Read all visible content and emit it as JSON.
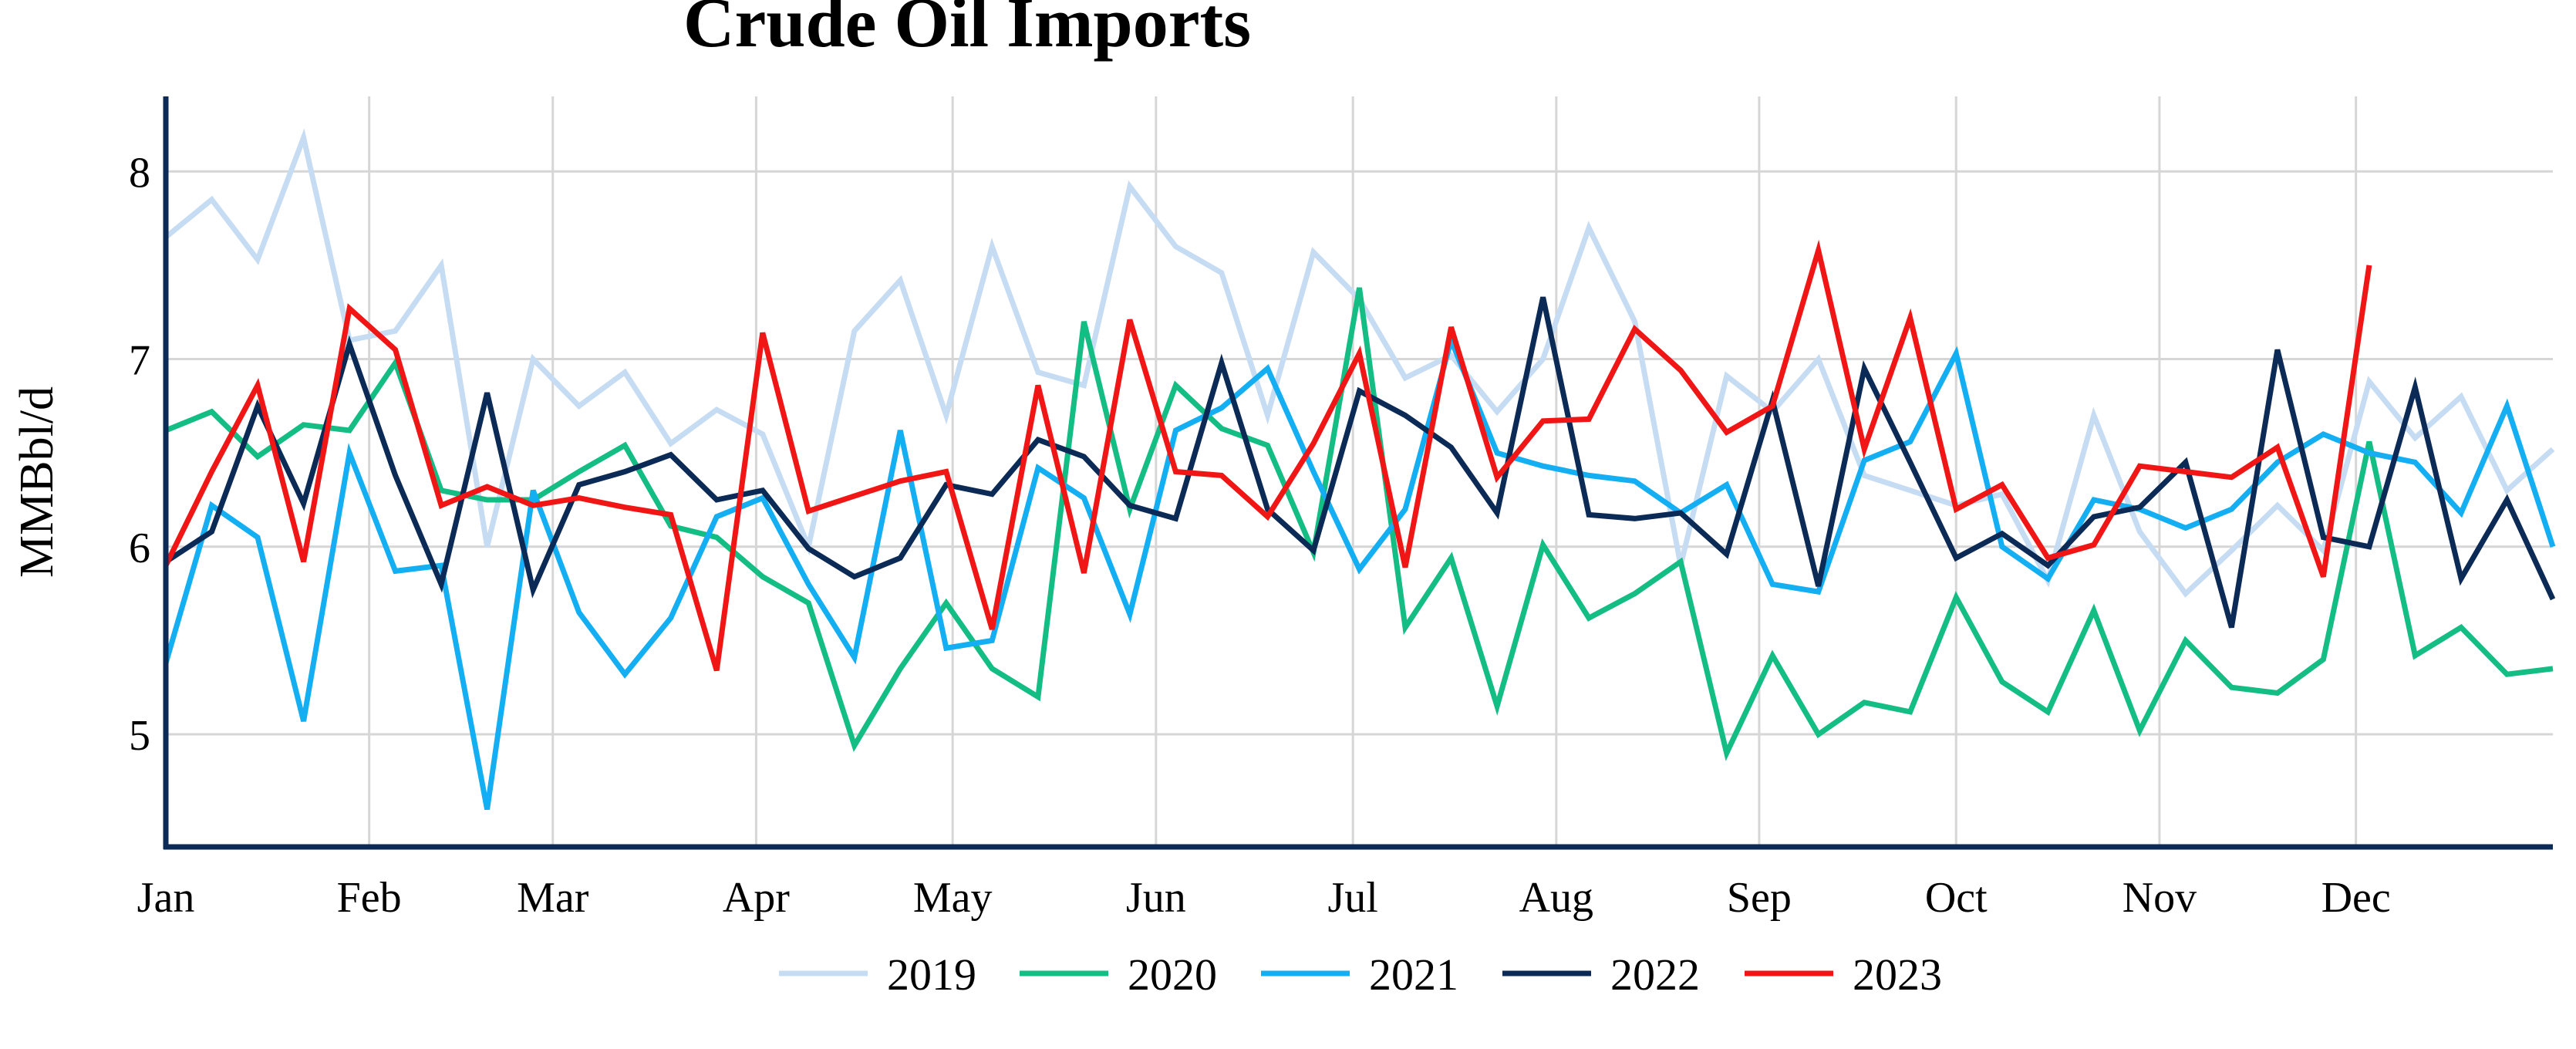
{
  "chart_data": {
    "type": "line",
    "title": "Crude Oil Imports",
    "xlabel": "",
    "ylabel": "MMBbl/d",
    "x_ticks": [
      "Jan",
      "Feb",
      "Mar",
      "Apr",
      "May",
      "Jun",
      "Jul",
      "Aug",
      "Sep",
      "Oct",
      "Nov",
      "Dec"
    ],
    "y_ticks": [
      5,
      6,
      7,
      8
    ],
    "ylim": [
      4.4,
      8.4
    ],
    "xlim": [
      1,
      53
    ],
    "grid": true,
    "legend_position": "bottom",
    "series": [
      {
        "name": "2019",
        "color": "#c6dcf3",
        "values": [
          7.65,
          7.85,
          7.53,
          8.18,
          7.1,
          7.15,
          7.5,
          6.0,
          7.0,
          6.75,
          6.93,
          6.55,
          6.73,
          6.6,
          6.0,
          7.15,
          7.42,
          6.7,
          7.6,
          6.93,
          6.86,
          7.92,
          7.6,
          7.46,
          6.7,
          7.57,
          7.32,
          6.9,
          7.02,
          6.72,
          7.0,
          7.7,
          7.2,
          5.9,
          6.91,
          6.72,
          7.0,
          6.38,
          6.3,
          6.22,
          6.28,
          5.82,
          6.7,
          6.08,
          5.75,
          5.98,
          6.22,
          5.98,
          6.88,
          6.58,
          6.8,
          6.3,
          6.52
        ]
      },
      {
        "name": "2020",
        "color": "#13bd83",
        "values": [
          6.62,
          6.72,
          6.48,
          6.65,
          6.62,
          6.98,
          6.3,
          6.25,
          6.25,
          6.4,
          6.54,
          6.11,
          6.05,
          5.84,
          5.7,
          4.94,
          5.35,
          5.7,
          5.35,
          5.2,
          7.2,
          6.2,
          6.86,
          6.63,
          6.54,
          5.97,
          7.38,
          5.57,
          5.94,
          5.15,
          6.01,
          5.62,
          5.75,
          5.92,
          4.9,
          5.42,
          5.0,
          5.17,
          5.12,
          5.73,
          5.28,
          5.12,
          5.66,
          5.02,
          5.5,
          5.25,
          5.22,
          5.4,
          6.56,
          5.42,
          5.57,
          5.32,
          5.35
        ]
      },
      {
        "name": "2021",
        "color": "#14aef2",
        "values": [
          5.38,
          6.22,
          6.05,
          5.07,
          6.5,
          5.87,
          5.9,
          4.6,
          6.3,
          5.65,
          5.32,
          5.62,
          6.16,
          6.26,
          5.8,
          5.41,
          6.62,
          5.46,
          5.5,
          6.42,
          6.26,
          5.64,
          6.62,
          6.74,
          6.95,
          6.4,
          5.88,
          6.2,
          7.1,
          6.5,
          6.43,
          6.38,
          6.35,
          6.18,
          6.33,
          5.8,
          5.76,
          6.46,
          6.56,
          7.03,
          6.0,
          5.83,
          6.25,
          6.2,
          6.1,
          6.2,
          6.45,
          6.6,
          6.5,
          6.45,
          6.18,
          6.75,
          6.0
        ]
      },
      {
        "name": "2022",
        "color": "#0b2a55",
        "values": [
          5.92,
          6.08,
          6.75,
          6.23,
          7.08,
          6.38,
          5.8,
          6.82,
          5.77,
          6.33,
          6.4,
          6.49,
          6.25,
          6.3,
          5.99,
          5.84,
          5.94,
          6.33,
          6.28,
          6.57,
          6.48,
          6.22,
          6.15,
          6.98,
          6.2,
          5.98,
          6.83,
          6.7,
          6.53,
          6.18,
          7.33,
          6.17,
          6.15,
          6.18,
          5.96,
          6.78,
          5.79,
          6.95,
          6.45,
          5.94,
          6.07,
          5.9,
          6.16,
          6.21,
          6.45,
          5.57,
          7.05,
          6.05,
          6.0,
          6.85,
          5.83,
          6.25,
          5.72
        ]
      },
      {
        "name": "2023",
        "color": "#f01616",
        "values": [
          5.9,
          6.4,
          6.86,
          5.92,
          7.27,
          7.05,
          6.22,
          6.32,
          6.22,
          6.26,
          6.21,
          6.17,
          5.34,
          7.14,
          6.19,
          6.27,
          6.35,
          6.4,
          5.56,
          6.86,
          5.86,
          7.21,
          6.4,
          6.38,
          6.16,
          6.55,
          7.03,
          5.89,
          7.17,
          6.37,
          6.67,
          6.68,
          7.16,
          6.94,
          6.61,
          6.75,
          7.58,
          6.52,
          7.22,
          6.2,
          6.33,
          5.94,
          6.01,
          6.43,
          6.4,
          6.37,
          6.53,
          5.84,
          7.5
        ]
      }
    ]
  }
}
